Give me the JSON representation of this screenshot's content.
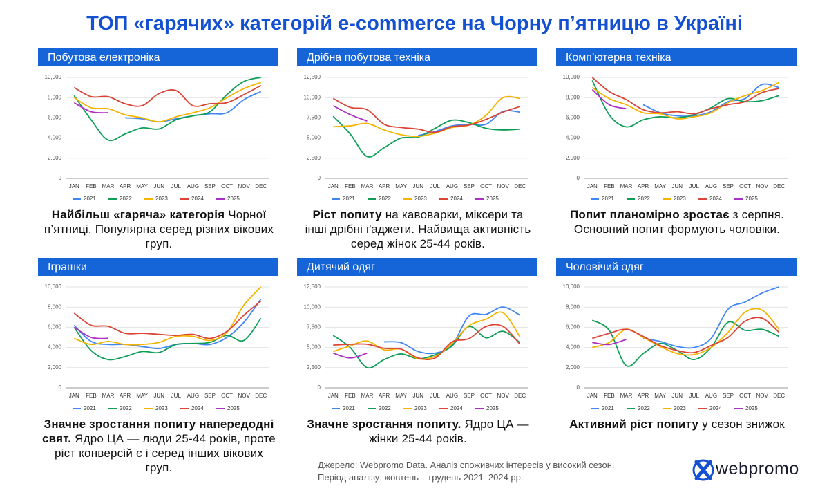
{
  "title": "ТОП «гарячих» категорій e-commerce на Чорну п’ятницю в Україні",
  "chart_data": [
    {
      "type": "line",
      "title": "Побутова електроніка",
      "caption_bold": "Найбільш «гаряча» категорія",
      "caption": "Чорної п’ятниці. Популярна серед різних вікових груп.",
      "categories": [
        "JAN",
        "FEB",
        "MAR",
        "APR",
        "MAY",
        "JUN",
        "JUL",
        "AUG",
        "SEP",
        "OCT",
        "NOV",
        "DEC"
      ],
      "ylim": [
        0,
        10000
      ],
      "yticks": [
        0,
        {
          "value": 2000,
          "label": "2,000"
        },
        {
          "value": 4000,
          "label": "4,000"
        },
        {
          "value": 6000,
          "label": "6,000"
        },
        {
          "value": 8000,
          "label": "8,000"
        },
        {
          "value": 10000,
          "label": "10,000"
        }
      ],
      "grid": true,
      "series": [
        {
          "name": "2021",
          "color": "#4285f4",
          "values": [
            8000,
            null,
            null,
            6000,
            5900,
            5600,
            5900,
            6200,
            6400,
            6500,
            7800,
            8600
          ]
        },
        {
          "name": "2022",
          "color": "#0f9d58",
          "values": [
            8200,
            5800,
            3800,
            4400,
            5000,
            4900,
            5800,
            6200,
            6600,
            8300,
            9600,
            10000
          ]
        },
        {
          "name": "2023",
          "color": "#f4b400",
          "values": [
            8000,
            7000,
            6900,
            6300,
            6000,
            5600,
            6100,
            6500,
            7000,
            8000,
            8900,
            9500
          ]
        },
        {
          "name": "2024",
          "color": "#db4437",
          "values": [
            9000,
            8100,
            8100,
            7400,
            7200,
            8400,
            8700,
            7200,
            7400,
            7500,
            8300,
            9200
          ]
        },
        {
          "name": "2025",
          "color": "#ab30c4",
          "values": [
            7500,
            6600,
            6500,
            null,
            null,
            null,
            null,
            null,
            null,
            null,
            null,
            null
          ]
        }
      ]
    },
    {
      "type": "line",
      "title": "Дрібна побутова техніка",
      "caption_bold": "Ріст попиту",
      "caption": "на кавоварки, міксери та інші дрібні ґаджети. Найвища активність серед жінок 25-44 років.",
      "categories": [
        "JAN",
        "FEB",
        "MAR",
        "APR",
        "MAY",
        "JUN",
        "JUL",
        "AUG",
        "SEP",
        "OCT",
        "NOV",
        "DEC"
      ],
      "ylim": [
        0,
        12500
      ],
      "yticks": [
        0,
        {
          "value": 2500,
          "label": "2,500"
        },
        {
          "value": 5000,
          "label": "5,000"
        },
        {
          "value": 7500,
          "label": "7,500"
        },
        {
          "value": 10000,
          "label": "10,000"
        },
        {
          "value": 12500,
          "label": "12,500"
        }
      ],
      "grid": true,
      "series": [
        {
          "name": "2021",
          "color": "#4285f4",
          "values": [
            null,
            null,
            null,
            null,
            null,
            5300,
            5800,
            6500,
            6700,
            6700,
            8300,
            8200
          ]
        },
        {
          "name": "2022",
          "color": "#0f9d58",
          "values": [
            7700,
            5500,
            2700,
            3800,
            5000,
            5100,
            6200,
            7200,
            6900,
            6200,
            6000,
            6100
          ]
        },
        {
          "name": "2023",
          "color": "#f4b400",
          "values": [
            6400,
            6500,
            6800,
            6000,
            5400,
            5200,
            5600,
            6300,
            6600,
            7800,
            10000,
            9900
          ]
        },
        {
          "name": "2024",
          "color": "#db4437",
          "values": [
            9900,
            8800,
            8500,
            6700,
            6300,
            6100,
            5700,
            6400,
            6600,
            7300,
            8200,
            8900
          ]
        },
        {
          "name": "2025",
          "color": "#ab30c4",
          "values": [
            9000,
            7900,
            7100,
            null,
            null,
            null,
            null,
            null,
            null,
            null,
            null,
            null
          ]
        }
      ]
    },
    {
      "type": "line",
      "title": "Комп’ютерна техніка",
      "caption_bold": "Попит планомірно зростає",
      "caption": "з серпня. Основний попит формують чоловіки.",
      "categories": [
        "JAN",
        "FEB",
        "MAR",
        "APR",
        "MAY",
        "JUN",
        "JUL",
        "AUG",
        "SEP",
        "OCT",
        "NOV",
        "DEC"
      ],
      "ylim": [
        0,
        10000
      ],
      "yticks": [
        0,
        {
          "value": 2000,
          "label": "2,000"
        },
        {
          "value": 4000,
          "label": "4,000"
        },
        {
          "value": 6000,
          "label": "6,000"
        },
        {
          "value": 8000,
          "label": "8,000"
        },
        {
          "value": 10000,
          "label": "10,000"
        }
      ],
      "grid": true,
      "series": [
        {
          "name": "2021",
          "color": "#4285f4",
          "values": [
            null,
            null,
            null,
            7300,
            6500,
            6200,
            6200,
            6600,
            7600,
            7900,
            9300,
            9000
          ]
        },
        {
          "name": "2022",
          "color": "#0f9d58",
          "values": [
            9700,
            6300,
            5100,
            5800,
            6100,
            6000,
            6300,
            7000,
            7900,
            7600,
            7700,
            8200
          ]
        },
        {
          "name": "2023",
          "color": "#f4b400",
          "values": [
            9000,
            7900,
            7300,
            6500,
            6400,
            5900,
            6100,
            6500,
            7500,
            8200,
            8700,
            9500
          ]
        },
        {
          "name": "2024",
          "color": "#db4437",
          "values": [
            10000,
            8600,
            7800,
            6800,
            6500,
            6600,
            6400,
            6900,
            7300,
            7600,
            8500,
            8900
          ]
        },
        {
          "name": "2025",
          "color": "#ab30c4",
          "values": [
            8800,
            7300,
            6900,
            null,
            null,
            null,
            null,
            null,
            null,
            null,
            null,
            null
          ]
        }
      ]
    },
    {
      "type": "line",
      "title": "Іграшки",
      "caption_bold": "Значне зростання попиту напередодні свят.",
      "caption": "Ядро ЦА — люди 25-44 років, проте ріст конверсій є і серед інших вікових груп.",
      "categories": [
        "JAN",
        "FEB",
        "MAR",
        "APR",
        "MAY",
        "JUN",
        "JUL",
        "AUG",
        "SEP",
        "OCT",
        "NOV",
        "DEC"
      ],
      "ylim": [
        0,
        10000
      ],
      "yticks": [
        0,
        {
          "value": 2000,
          "label": "2,000"
        },
        {
          "value": 4000,
          "label": "4,000"
        },
        {
          "value": 6000,
          "label": "6,000"
        },
        {
          "value": 8000,
          "label": "8,000"
        },
        {
          "value": 10000,
          "label": "10,000"
        }
      ],
      "grid": true,
      "series": [
        {
          "name": "2021",
          "color": "#4285f4",
          "values": [
            6200,
            4600,
            4300,
            4300,
            4100,
            3900,
            4300,
            4400,
            4300,
            5000,
            6500,
            8800
          ]
        },
        {
          "name": "2022",
          "color": "#0f9d58",
          "values": [
            6000,
            3700,
            2800,
            3100,
            3600,
            3500,
            4300,
            4400,
            4500,
            5200,
            4700,
            6900
          ]
        },
        {
          "name": "2023",
          "color": "#f4b400",
          "values": [
            4900,
            4300,
            4600,
            4300,
            4300,
            4500,
            5100,
            5100,
            4700,
            5500,
            8200,
            10000
          ]
        },
        {
          "name": "2024",
          "color": "#db4437",
          "values": [
            7400,
            6200,
            6100,
            5400,
            5400,
            5300,
            5200,
            5300,
            4900,
            5600,
            7200,
            8600
          ]
        },
        {
          "name": "2025",
          "color": "#ab30c4",
          "values": [
            6000,
            5000,
            4900,
            null,
            null,
            null,
            null,
            null,
            null,
            null,
            null,
            null
          ]
        }
      ]
    },
    {
      "type": "line",
      "title": "Дитячий одяг",
      "caption_bold": "Значне зростання попиту.",
      "caption": "Ядро ЦА — жінки 25-44 років.",
      "categories": [
        "JAN",
        "FEB",
        "MAR",
        "APR",
        "MAY",
        "JUN",
        "JUL",
        "AUG",
        "SEP",
        "OCT",
        "NOV",
        "DEC"
      ],
      "ylim": [
        0,
        12500
      ],
      "yticks": [
        0,
        {
          "value": 2500,
          "label": "2,500"
        },
        {
          "value": 5000,
          "label": "5,000"
        },
        {
          "value": 7500,
          "label": "7,500"
        },
        {
          "value": 10000,
          "label": "10,000"
        },
        {
          "value": 12500,
          "label": "12,500"
        }
      ],
      "grid": true,
      "series": [
        {
          "name": "2021",
          "color": "#4285f4",
          "values": [
            null,
            null,
            null,
            5700,
            5600,
            4500,
            4300,
            5300,
            8900,
            9100,
            10000,
            9000
          ]
        },
        {
          "name": "2022",
          "color": "#0f9d58",
          "values": [
            6500,
            5000,
            2500,
            3500,
            4200,
            3600,
            4100,
            5200,
            7600,
            6200,
            7000,
            5600
          ]
        },
        {
          "name": "2023",
          "color": "#f4b400",
          "values": [
            4500,
            5200,
            5800,
            4700,
            4800,
            3600,
            3900,
            5500,
            7700,
            8500,
            9300,
            6300
          ]
        },
        {
          "name": "2024",
          "color": "#db4437",
          "values": [
            5300,
            5400,
            5400,
            4900,
            4800,
            3700,
            3700,
            5700,
            6100,
            7600,
            7600,
            5400
          ]
        },
        {
          "name": "2025",
          "color": "#ab30c4",
          "values": [
            4300,
            3700,
            4300,
            null,
            null,
            null,
            null,
            null,
            null,
            null,
            null,
            null
          ]
        }
      ]
    },
    {
      "type": "line",
      "title": "Чоловічий одяг",
      "caption_bold": "Активний ріст попиту",
      "caption": "у сезон знижок",
      "categories": [
        "JAN",
        "FEB",
        "MAR",
        "APR",
        "MAY",
        "JUN",
        "JUL",
        "AUG",
        "SEP",
        "OCT",
        "NOV",
        "DEC"
      ],
      "ylim": [
        0,
        10000
      ],
      "yticks": [
        0,
        {
          "value": 2000,
          "label": "2,000"
        },
        {
          "value": 4000,
          "label": "4,000"
        },
        {
          "value": 6000,
          "label": "6,000"
        },
        {
          "value": 8000,
          "label": "8,000"
        },
        {
          "value": 10000,
          "label": "10,000"
        }
      ],
      "grid": true,
      "series": [
        {
          "name": "2021",
          "color": "#4285f4",
          "values": [
            null,
            null,
            null,
            4900,
            4600,
            4100,
            4000,
            4900,
            7800,
            8500,
            9400,
            10000
          ]
        },
        {
          "name": "2022",
          "color": "#0f9d58",
          "values": [
            6700,
            5700,
            2200,
            3400,
            4400,
            3700,
            2800,
            4000,
            6500,
            5700,
            5800,
            5100
          ]
        },
        {
          "name": "2023",
          "color": "#f4b400",
          "values": [
            4000,
            4500,
            5800,
            5000,
            4100,
            3400,
            3300,
            4000,
            5500,
            7500,
            7700,
            5800
          ]
        },
        {
          "name": "2024",
          "color": "#db4437",
          "values": [
            4900,
            5400,
            5800,
            5100,
            4200,
            3700,
            3500,
            4200,
            5000,
            6600,
            6900,
            5500
          ]
        },
        {
          "name": "2025",
          "color": "#ab30c4",
          "values": [
            4500,
            4300,
            4800,
            null,
            null,
            null,
            null,
            null,
            null,
            null,
            null,
            null
          ]
        }
      ]
    }
  ],
  "source": [
    "Джерело: Webpromo Data. Аналіз споживчих інтересів у високий сезон.",
    "Період аналізу: жовтень – грудень 2021–2024 рр."
  ],
  "logo": "webpromo"
}
